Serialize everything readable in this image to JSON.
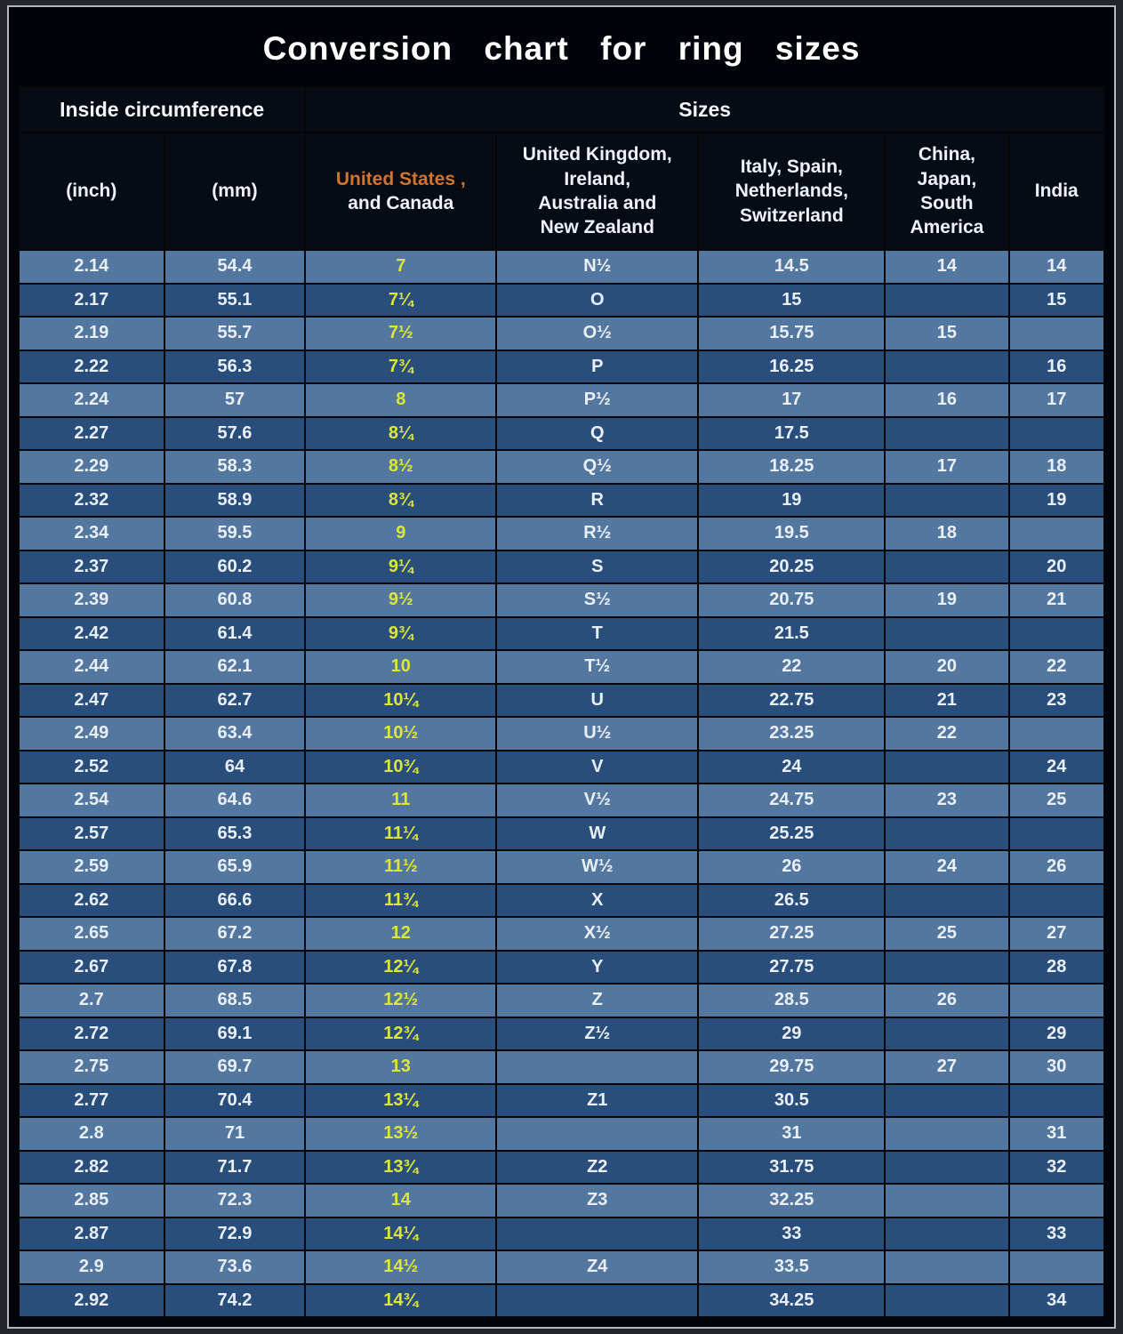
{
  "title": "Conversion chart for ring sizes",
  "groups": {
    "inside": "Inside circumference",
    "sizes": "Sizes"
  },
  "columns_display": {
    "inch": "(inch)",
    "mm": "(mm)",
    "us_accent": "United States ,",
    "us_rest": "and Canada",
    "uk": "United Kingdom,\nIreland,\nAustralia and\nNew Zealand",
    "italy": "Italy,  Spain,\nNetherlands,\nSwitzerland",
    "china": "China,\nJapan,\nSouth\nAmerica",
    "india": "India"
  },
  "chart_data": {
    "type": "table",
    "title": "Conversion chart for ring sizes",
    "group_headers": [
      {
        "label": "Inside circumference",
        "span": 2
      },
      {
        "label": "Sizes",
        "span": 5
      }
    ],
    "columns": [
      "(inch)",
      "(mm)",
      "United States , and Canada",
      "United Kingdom, Ireland, Australia and New Zealand",
      "Italy, Spain, Netherlands, Switzerland",
      "China, Japan, South America",
      "India"
    ],
    "rows": [
      [
        "2.14",
        "54.4",
        "7",
        "N½",
        "14.5",
        "14",
        "14"
      ],
      [
        "2.17",
        "55.1",
        "7¼",
        "O",
        "15",
        "",
        "15"
      ],
      [
        "2.19",
        "55.7",
        "7½",
        "O½",
        "15.75",
        "15",
        ""
      ],
      [
        "2.22",
        "56.3",
        "7¾",
        "P",
        "16.25",
        "",
        "16"
      ],
      [
        "2.24",
        "57",
        "8",
        "P½",
        "17",
        "16",
        "17"
      ],
      [
        "2.27",
        "57.6",
        "8¼",
        "Q",
        "17.5",
        "",
        ""
      ],
      [
        "2.29",
        "58.3",
        "8½",
        "Q½",
        "18.25",
        "17",
        "18"
      ],
      [
        "2.32",
        "58.9",
        "8¾",
        "R",
        "19",
        "",
        "19"
      ],
      [
        "2.34",
        "59.5",
        "9",
        "R½",
        "19.5",
        "18",
        ""
      ],
      [
        "2.37",
        "60.2",
        "9¼",
        "S",
        "20.25",
        "",
        "20"
      ],
      [
        "2.39",
        "60.8",
        "9½",
        "S½",
        "20.75",
        "19",
        "21"
      ],
      [
        "2.42",
        "61.4",
        "9¾",
        "T",
        "21.5",
        "",
        ""
      ],
      [
        "2.44",
        "62.1",
        "10",
        "T½",
        "22",
        "20",
        "22"
      ],
      [
        "2.47",
        "62.7",
        "10¼",
        "U",
        "22.75",
        "21",
        "23"
      ],
      [
        "2.49",
        "63.4",
        "10½",
        "U½",
        "23.25",
        "22",
        ""
      ],
      [
        "2.52",
        "64",
        "10¾",
        "V",
        "24",
        "",
        "24"
      ],
      [
        "2.54",
        "64.6",
        "11",
        "V½",
        "24.75",
        "23",
        "25"
      ],
      [
        "2.57",
        "65.3",
        "11¼",
        "W",
        "25.25",
        "",
        ""
      ],
      [
        "2.59",
        "65.9",
        "11½",
        "W½",
        "26",
        "24",
        "26"
      ],
      [
        "2.62",
        "66.6",
        "11¾",
        "X",
        "26.5",
        "",
        ""
      ],
      [
        "2.65",
        "67.2",
        "12",
        "X½",
        "27.25",
        "25",
        "27"
      ],
      [
        "2.67",
        "67.8",
        "12¼",
        "Y",
        "27.75",
        "",
        "28"
      ],
      [
        "2.7",
        "68.5",
        "12½",
        "Z",
        "28.5",
        "26",
        ""
      ],
      [
        "2.72",
        "69.1",
        "12¾",
        "Z½",
        "29",
        "",
        "29"
      ],
      [
        "2.75",
        "69.7",
        "13",
        "",
        "29.75",
        "27",
        "30"
      ],
      [
        "2.77",
        "70.4",
        "13¼",
        "Z1",
        "30.5",
        "",
        ""
      ],
      [
        "2.8",
        "71",
        "13½",
        "",
        "31",
        "",
        "31"
      ],
      [
        "2.82",
        "71.7",
        "13¾",
        "Z2",
        "31.75",
        "",
        "32"
      ],
      [
        "2.85",
        "72.3",
        "14",
        "Z3",
        "32.25",
        "",
        ""
      ],
      [
        "2.87",
        "72.9",
        "14¼",
        "",
        "33",
        "",
        "33"
      ],
      [
        "2.9",
        "73.6",
        "14½",
        "Z4",
        "33.5",
        "",
        ""
      ],
      [
        "2.92",
        "74.2",
        "14¾",
        "",
        "34.25",
        "",
        "34"
      ]
    ]
  },
  "colors": {
    "title_bg": "#01030a",
    "header_bg": "#070b14",
    "border": "#04060a",
    "row_light": "#54779f",
    "row_dark": "#2a4e7c",
    "text": "#e9eff6",
    "us_value": "#dce63a",
    "us_header_accent": "#d2742f"
  }
}
